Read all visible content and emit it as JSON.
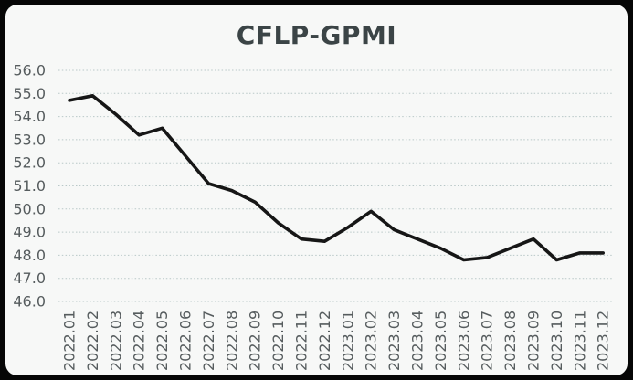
{
  "window": {
    "frame_color": "#060606",
    "panel_background": "#f7f8f7"
  },
  "chart_data": {
    "type": "line",
    "title": "CFLP-GPMI",
    "title_color": "#3b4446",
    "categories": [
      "2022.01",
      "2022.02",
      "2022.03",
      "2022.04",
      "2022.05",
      "2022.06",
      "2022.07",
      "2022.08",
      "2022.09",
      "2022.10",
      "2022.11",
      "2022.12",
      "2023.01",
      "2023.02",
      "2023.03",
      "2023.04",
      "2023.05",
      "2023.06",
      "2023.07",
      "2023.08",
      "2023.09",
      "2023.10",
      "2023.11",
      "2023.12"
    ],
    "series": [
      {
        "name": "CFLP-GPMI",
        "color": "#161616",
        "line_width": 3.6,
        "values": [
          54.7,
          54.9,
          54.1,
          53.2,
          53.5,
          52.3,
          51.1,
          50.8,
          50.3,
          49.4,
          48.7,
          48.6,
          49.2,
          49.9,
          49.1,
          48.7,
          48.3,
          47.8,
          47.9,
          48.3,
          48.7,
          47.8,
          48.1,
          48.1
        ]
      }
    ],
    "xlabel": "",
    "ylabel": "",
    "ylim": [
      46.0,
      56.0
    ],
    "ytick_step": 1.0,
    "ytick_labels": [
      "56.0",
      "55.0",
      "54.0",
      "53.0",
      "52.0",
      "51.0",
      "50.0",
      "49.0",
      "48.0",
      "47.0",
      "46.0"
    ],
    "grid": {
      "horizontal": true,
      "vertical": false,
      "style": "dotted",
      "color": "#b9c8c8"
    },
    "axis_label_color": "#565c5e",
    "legend": "none",
    "x_label_rotation_deg": -90
  }
}
